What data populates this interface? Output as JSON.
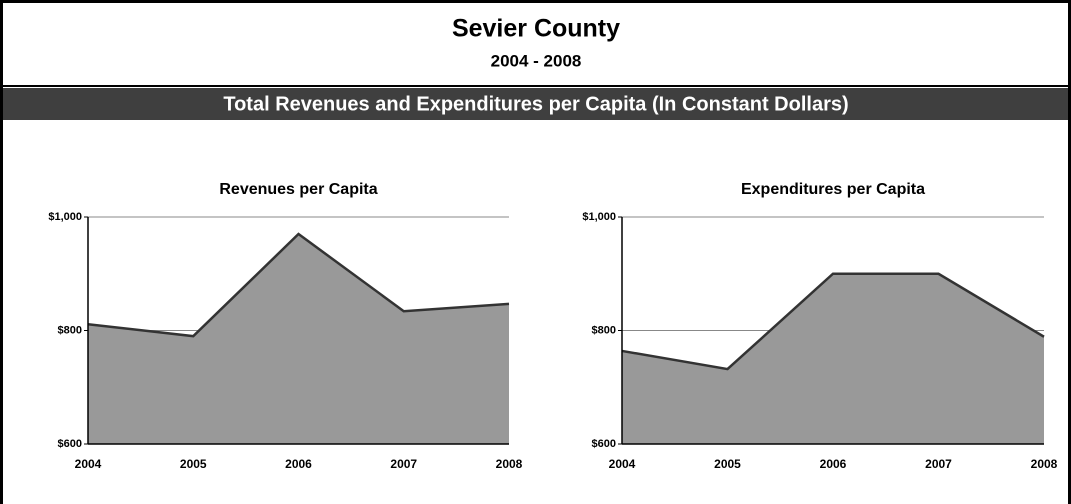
{
  "header": {
    "title": "Sevier County",
    "subtitle": "2004 - 2008",
    "banner": "Total Revenues and Expenditures per Capita (In Constant Dollars)"
  },
  "chart_data": [
    {
      "type": "area",
      "title": "Revenues per Capita",
      "categories": [
        "2004",
        "2005",
        "2006",
        "2007",
        "2008"
      ],
      "values": [
        811,
        790,
        970,
        834,
        847
      ],
      "color": "#999999",
      "ylim": [
        600,
        1000
      ],
      "yticks": [
        {
          "value": 600,
          "label": "$600"
        },
        {
          "value": 800,
          "label": "$800"
        },
        {
          "value": 1000,
          "label": "$1,000"
        }
      ],
      "grid": true
    },
    {
      "type": "area",
      "title": "Expenditures per Capita",
      "categories": [
        "2004",
        "2005",
        "2006",
        "2007",
        "2008"
      ],
      "values": [
        764,
        732,
        900,
        900,
        789
      ],
      "color": "#999999",
      "ylim": [
        600,
        1000
      ],
      "yticks": [
        {
          "value": 600,
          "label": "$600"
        },
        {
          "value": 800,
          "label": "$800"
        },
        {
          "value": 1000,
          "label": "$1,000"
        }
      ],
      "grid": true
    }
  ]
}
